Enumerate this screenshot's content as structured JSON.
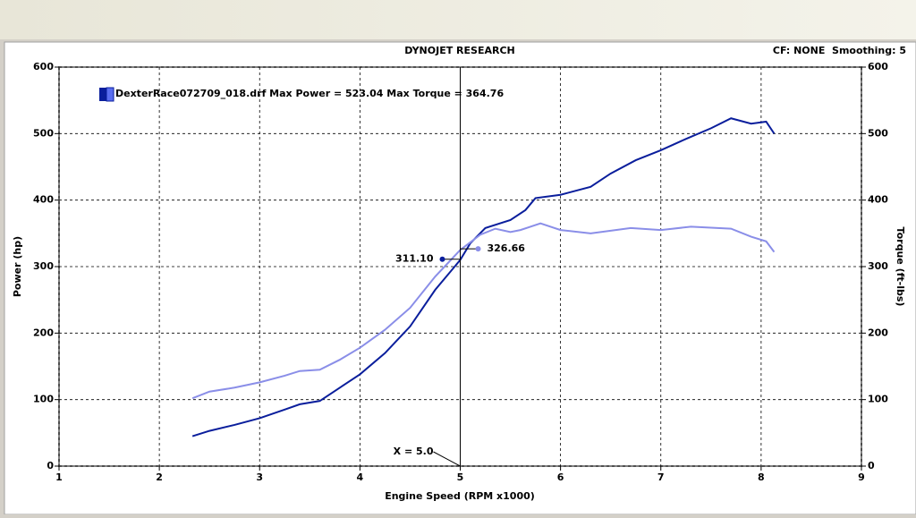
{
  "chart_data": {
    "type": "line",
    "title": "DYNOJET RESEARCH",
    "settings_text": "CF: NONE  Smoothing: 5",
    "legend_text": "DexterRace072709_018.drf Max Power = 523.04 Max Torque = 364.76",
    "x_label": "Engine Speed (RPM x1000)",
    "y_label": "Power (hp)",
    "y2_label": "Torque (ft-lbs)",
    "xlim": [
      1,
      9
    ],
    "xticks": [
      1,
      2,
      3,
      4,
      5,
      6,
      7,
      8,
      9
    ],
    "ylim": [
      0,
      600
    ],
    "yticks": [
      0,
      100,
      200,
      300,
      400,
      500,
      600
    ],
    "y2lim": [
      0,
      600
    ],
    "y2ticks": [
      0,
      100,
      200,
      300,
      400,
      500,
      600
    ],
    "grid": true,
    "series": [
      {
        "color": "#0a1e9c",
        "x": [
          2.33,
          2.5,
          2.75,
          3.0,
          3.25,
          3.4,
          3.6,
          3.8,
          4.0,
          4.25,
          4.5,
          4.75,
          5.0,
          5.1,
          5.25,
          5.5,
          5.65,
          5.75,
          6.0,
          6.3,
          6.5,
          6.75,
          7.0,
          7.25,
          7.5,
          7.7,
          7.9,
          8.05,
          8.13
        ],
        "values": [
          45,
          53,
          62,
          72,
          85,
          93,
          98,
          118,
          138,
          170,
          210,
          265,
          310,
          335,
          358,
          370,
          385,
          403,
          408,
          420,
          440,
          460,
          475,
          492,
          508,
          523,
          515,
          518,
          500
        ]
      },
      {
        "color": "#8a8ee8",
        "axis": "y2",
        "x": [
          2.33,
          2.5,
          2.75,
          3.0,
          3.25,
          3.4,
          3.6,
          3.8,
          4.0,
          4.25,
          4.5,
          4.75,
          5.0,
          5.2,
          5.35,
          5.5,
          5.6,
          5.8,
          6.0,
          6.3,
          6.7,
          7.0,
          7.3,
          7.7,
          7.9,
          8.05,
          8.13
        ],
        "values": [
          102,
          112,
          118,
          126,
          136,
          143,
          145,
          160,
          178,
          205,
          238,
          285,
          325,
          348,
          357,
          352,
          355,
          365,
          355,
          350,
          358,
          355,
          360,
          357,
          345,
          338,
          322
        ]
      }
    ],
    "cursor": {
      "x": {
        "value": 5.0,
        "label": "X = 5.0"
      },
      "power": {
        "value": 311.1,
        "label": "311.10"
      },
      "torque": {
        "value": 326.66,
        "label": "326.66"
      }
    }
  }
}
